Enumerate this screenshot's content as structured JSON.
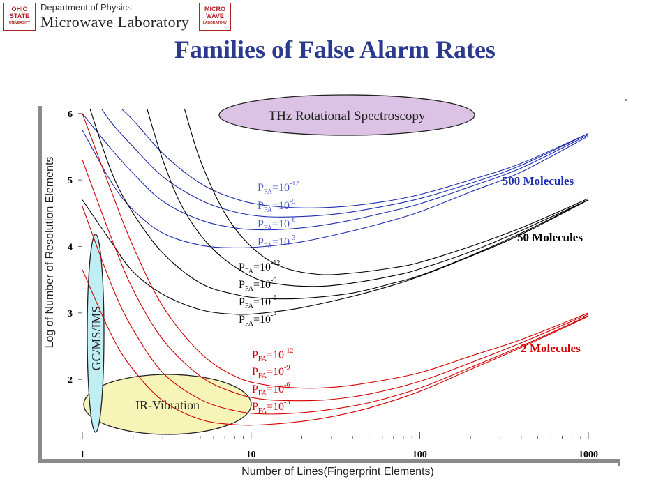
{
  "header": {
    "osu_logo_text": [
      "OHIO",
      "STATE",
      "UNIVERSITY"
    ],
    "department": "Department of Physics",
    "laboratory": "Microwave Laboratory",
    "mw_logo_text": [
      "MICRO",
      "WAVE",
      "LABORATORY"
    ]
  },
  "title": "Families of False Alarm Rates",
  "chart_data": {
    "type": "line",
    "xlabel": "Number of Lines(Fingerprint Elements)",
    "ylabel": "Log of Number of Resolution Elements",
    "x_scale": "log",
    "xlim": [
      1,
      1000
    ],
    "ylim": [
      1.1,
      6.05
    ],
    "x_ticks": [
      "1",
      "10",
      "100",
      "1000"
    ],
    "y_ticks": [
      "2",
      "3",
      "4",
      "5",
      "6"
    ],
    "colors": {
      "red": "#d40000",
      "black": "#000000",
      "blue": "#1f2fb0",
      "pfa_blue": "#4a57c8"
    },
    "groups": [
      {
        "name": "500 Molecules",
        "color": "blue",
        "series": [
          {
            "name": "P_FA=10^-12",
            "x": [
              1.5,
              2,
              3,
              5,
              8,
              12,
              20,
              35,
              60,
              100,
              200,
              400,
              1000
            ],
            "y": [
              6.2,
              5.9,
              5.4,
              4.95,
              4.72,
              4.62,
              4.58,
              4.6,
              4.67,
              4.78,
              5.0,
              5.25,
              5.7
            ]
          },
          {
            "name": "P_FA=10^-9",
            "x": [
              1.2,
              1.5,
              2,
              3,
              5,
              8,
              12,
              20,
              35,
              60,
              100,
              200,
              400,
              1000
            ],
            "y": [
              6.2,
              5.85,
              5.5,
              5.05,
              4.7,
              4.52,
              4.45,
              4.45,
              4.5,
              4.6,
              4.72,
              4.95,
              5.22,
              5.7
            ]
          },
          {
            "name": "P_FA=10^-6",
            "x": [
              1,
              1.5,
              2,
              3,
              5,
              8,
              12,
              20,
              35,
              60,
              100,
              200,
              400,
              1000
            ],
            "y": [
              6.0,
              5.45,
              5.1,
              4.68,
              4.4,
              4.28,
              4.25,
              4.28,
              4.37,
              4.5,
              4.64,
              4.9,
              5.18,
              5.68
            ]
          },
          {
            "name": "P_FA=10^-3",
            "x": [
              1,
              1.5,
              2,
              3,
              5,
              8,
              12,
              20,
              35,
              60,
              100,
              200,
              400,
              1000
            ],
            "y": [
              5.75,
              4.95,
              4.55,
              4.2,
              4.02,
              3.98,
              4.0,
              4.07,
              4.2,
              4.35,
              4.52,
              4.82,
              5.12,
              5.66
            ]
          }
        ]
      },
      {
        "name": "50 Molecules",
        "color": "black",
        "series": [
          {
            "name": "P_FA=10^-12",
            "x": [
              4,
              5,
              7,
              10,
              15,
              25,
              40,
              70,
              100,
              200,
              400,
              1000
            ],
            "y": [
              6.1,
              5.3,
              4.5,
              4.0,
              3.7,
              3.58,
              3.6,
              3.68,
              3.76,
              4.0,
              4.28,
              4.72
            ]
          },
          {
            "name": "P_FA=10^-9",
            "x": [
              2.4,
              3,
              4,
              6,
              10,
              15,
              25,
              40,
              70,
              100,
              200,
              400,
              1000
            ],
            "y": [
              6.1,
              5.3,
              4.55,
              3.95,
              3.55,
              3.43,
              3.4,
              3.45,
              3.56,
              3.66,
              3.92,
              4.24,
              4.7
            ]
          },
          {
            "name": "P_FA=10^-6",
            "x": [
              1.1,
              1.5,
              2,
              3,
              5,
              8,
              12,
              20,
              40,
              70,
              100,
              200,
              400,
              1000
            ],
            "y": [
              6.1,
              5.1,
              4.5,
              3.9,
              3.45,
              3.28,
              3.22,
              3.22,
              3.3,
              3.45,
              3.56,
              3.86,
              4.2,
              4.7
            ]
          },
          {
            "name": "P_FA=10^-3",
            "x": [
              1,
              1.5,
              2,
              3,
              5,
              8,
              12,
              20,
              40,
              70,
              100,
              200,
              400,
              1000
            ],
            "y": [
              4.7,
              4.05,
              3.62,
              3.28,
              3.05,
              2.98,
              3.0,
              3.08,
              3.25,
              3.42,
              3.55,
              3.85,
              4.18,
              4.7
            ]
          }
        ]
      },
      {
        "name": "2 Molecules",
        "color": "red",
        "series": [
          {
            "name": "P_FA=10^-12",
            "x": [
              1,
              1.5,
              2,
              3,
              5,
              8,
              12,
              20,
              30,
              50,
              100,
              200,
              400,
              1000
            ],
            "y": [
              6.0,
              4.8,
              4.0,
              3.1,
              2.4,
              2.05,
              1.92,
              1.87,
              1.88,
              1.95,
              2.1,
              2.35,
              2.6,
              3.0
            ]
          },
          {
            "name": "P_FA=10^-9",
            "x": [
              1,
              1.5,
              2,
              3,
              5,
              8,
              12,
              20,
              30,
              50,
              100,
              200,
              400,
              1000
            ],
            "y": [
              5.3,
              4.1,
              3.35,
              2.6,
              2.05,
              1.8,
              1.7,
              1.68,
              1.7,
              1.78,
              1.97,
              2.25,
              2.55,
              2.98
            ]
          },
          {
            "name": "P_FA=10^-6",
            "x": [
              1,
              1.5,
              2,
              3,
              5,
              8,
              12,
              20,
              30,
              50,
              100,
              200,
              400,
              1000
            ],
            "y": [
              4.6,
              3.4,
              2.75,
              2.1,
              1.7,
              1.53,
              1.48,
              1.5,
              1.55,
              1.65,
              1.87,
              2.18,
              2.5,
              2.96
            ]
          },
          {
            "name": "P_FA=10^-3",
            "x": [
              1,
              1.5,
              2,
              3,
              5,
              8,
              12,
              20,
              30,
              50,
              100,
              200,
              400,
              1000
            ],
            "y": [
              3.65,
              2.65,
              2.15,
              1.68,
              1.4,
              1.32,
              1.32,
              1.37,
              1.44,
              1.57,
              1.82,
              2.15,
              2.48,
              2.95
            ]
          }
        ]
      }
    ],
    "group_labels": [
      {
        "text": "500 Molecules",
        "color": "blue"
      },
      {
        "text": "50 Molecules",
        "color": "black"
      },
      {
        "text": "2 Molecules",
        "color": "red"
      }
    ],
    "pfa_label_sets": [
      {
        "color": "pfa_blue",
        "labels": [
          {
            "base": "P",
            "sub": "FA",
            "rest": "=10",
            "sup": "-12"
          },
          {
            "base": "P",
            "sub": "FA",
            "rest": "=10",
            "sup": "-9"
          },
          {
            "base": "P",
            "sub": "FA",
            "rest": "=10",
            "sup": "-6"
          },
          {
            "base": "P",
            "sub": "FA",
            "rest": "=10",
            "sup": "-3"
          }
        ]
      },
      {
        "color": "black",
        "labels": [
          {
            "base": "P",
            "sub": "FA",
            "rest": "=10",
            "sup": "-12"
          },
          {
            "base": "P",
            "sub": "FA",
            "rest": "=10",
            "sup": "-9"
          },
          {
            "base": "P",
            "sub": "FA",
            "rest": "=10",
            "sup": "-6"
          },
          {
            "base": "P",
            "sub": "FA",
            "rest": "=10",
            "sup": "-3"
          }
        ]
      },
      {
        "color": "red",
        "labels": [
          {
            "base": "P",
            "sub": "FA",
            "rest": "=10",
            "sup": "-12"
          },
          {
            "base": "P",
            "sub": "FA",
            "rest": "=10",
            "sup": "-9"
          },
          {
            "base": "P",
            "sub": "FA",
            "rest": "=10",
            "sup": "-6"
          },
          {
            "base": "P",
            "sub": "FA",
            "rest": "=10",
            "sup": "-3"
          }
        ]
      }
    ],
    "regions": [
      {
        "text": "THz Rotational Spectroscopy",
        "fill": "#dcc3e6"
      },
      {
        "text": "GC/MS/IMS",
        "fill": "#bfeff5"
      },
      {
        "text": "IR-Vibration",
        "fill": "#f7f4b8"
      }
    ]
  }
}
